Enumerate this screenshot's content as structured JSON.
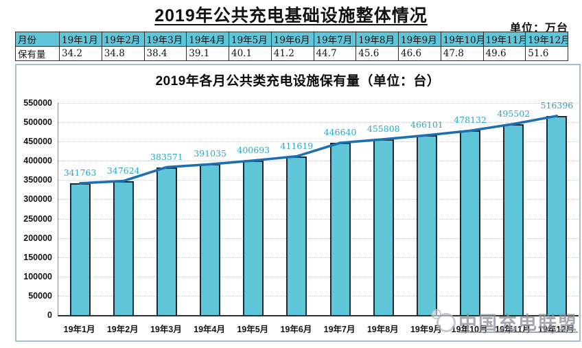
{
  "page": {
    "title": "2019年公共充电基础设施整体情况",
    "unit_label": "单位：万台"
  },
  "summary_table": {
    "row1_header": "月份",
    "row2_header": "保有量",
    "months": [
      "19年1月",
      "19年2月",
      "19年3月",
      "19年4月",
      "19年5月",
      "19年6月",
      "19年7月",
      "19年8月",
      "19年9月",
      "19年10月",
      "19年11月",
      "19年12月"
    ],
    "values": [
      "34.2",
      "34.8",
      "38.4",
      "39.1",
      "40.1",
      "41.2",
      "44.7",
      "45.6",
      "46.6",
      "47.8",
      "49.6",
      "51.6"
    ],
    "header_bg": "#5fc6da"
  },
  "chart_data": {
    "type": "bar",
    "title": "2019年各月公共类充电设施保有量（单位：台）",
    "categories": [
      "19年1月",
      "19年2月",
      "19年3月",
      "19年4月",
      "19年5月",
      "19年6月",
      "19年7月",
      "19年8月",
      "19年9月",
      "19年10月",
      "19年11月",
      "19年12月"
    ],
    "values": [
      341763,
      347624,
      383571,
      391035,
      400693,
      411619,
      446640,
      455808,
      466101,
      478132,
      495502,
      516396
    ],
    "overlay_line_same_values": true,
    "ylim": [
      0,
      550000
    ],
    "ytick_interval": 50000,
    "ytick_labels": [
      "0",
      "50000",
      "100000",
      "150000",
      "200000",
      "250000",
      "300000",
      "350000",
      "400000",
      "450000",
      "500000",
      "550000"
    ],
    "grid": true,
    "legend_visible": false,
    "xlabel": "",
    "ylabel": "",
    "colors": {
      "bar_fill": "#5fc6da",
      "bar_border": "#1c2836",
      "line": "#1e6fae",
      "value_label": "#2aa6c4"
    }
  },
  "watermark": {
    "text": "中国充电联盟"
  }
}
